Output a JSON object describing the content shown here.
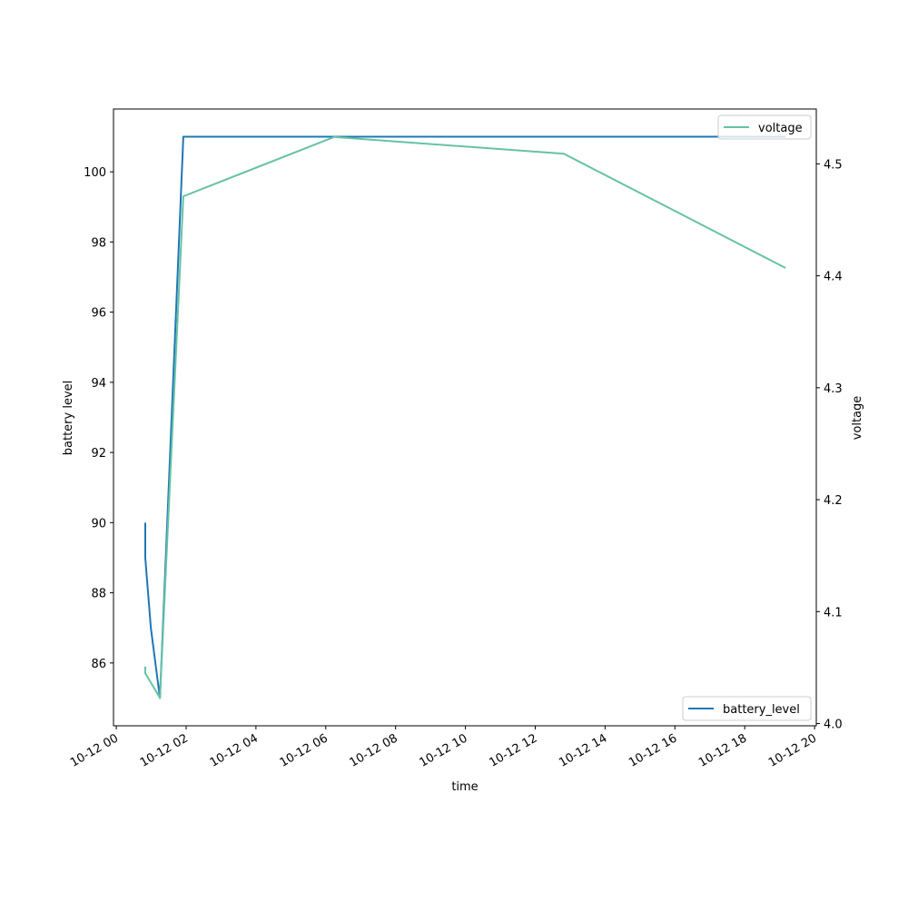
{
  "chart_data": {
    "type": "line",
    "xlabel": "time",
    "ylabel_left": "battery level",
    "ylabel_right": "voltage",
    "x_unit": "hours since 10-12 00",
    "xlim": [
      -0.08,
      20.05
    ],
    "ylim_left": [
      84.21,
      101.79
    ],
    "ylim_right": [
      3.998,
      4.549
    ],
    "x_ticks": [
      0,
      2,
      4,
      6,
      8,
      10,
      12,
      14,
      16,
      18,
      20
    ],
    "x_tick_labels": [
      "10-12 00",
      "10-12 02",
      "10-12 04",
      "10-12 06",
      "10-12 08",
      "10-12 10",
      "10-12 12",
      "10-12 14",
      "10-12 16",
      "10-12 18",
      "10-12 20"
    ],
    "y_left_ticks": [
      86,
      88,
      90,
      92,
      94,
      96,
      98,
      100
    ],
    "y_left_tick_labels": [
      "86",
      "88",
      "90",
      "92",
      "94",
      "96",
      "98",
      "100"
    ],
    "y_right_ticks": [
      4.0,
      4.1,
      4.2,
      4.3,
      4.4,
      4.5
    ],
    "y_right_tick_labels": [
      "4.0",
      "4.1",
      "4.2",
      "4.3",
      "4.4",
      "4.5"
    ],
    "series": [
      {
        "name": "battery_level",
        "axis": "left",
        "color": "#1f77b4",
        "legend": "lower-right",
        "x": [
          0.83,
          0.83,
          0.99,
          1.25,
          1.92,
          19.17
        ],
        "y": [
          90,
          89,
          87,
          85,
          101,
          101
        ]
      },
      {
        "name": "voltage",
        "axis": "right",
        "color": "#66c2a5",
        "legend": "upper-right",
        "x": [
          0.83,
          0.83,
          1.25,
          1.92,
          6.24,
          12.82,
          19.17
        ],
        "y": [
          4.051,
          4.045,
          4.023,
          4.471,
          4.524,
          4.509,
          4.407
        ]
      }
    ]
  }
}
